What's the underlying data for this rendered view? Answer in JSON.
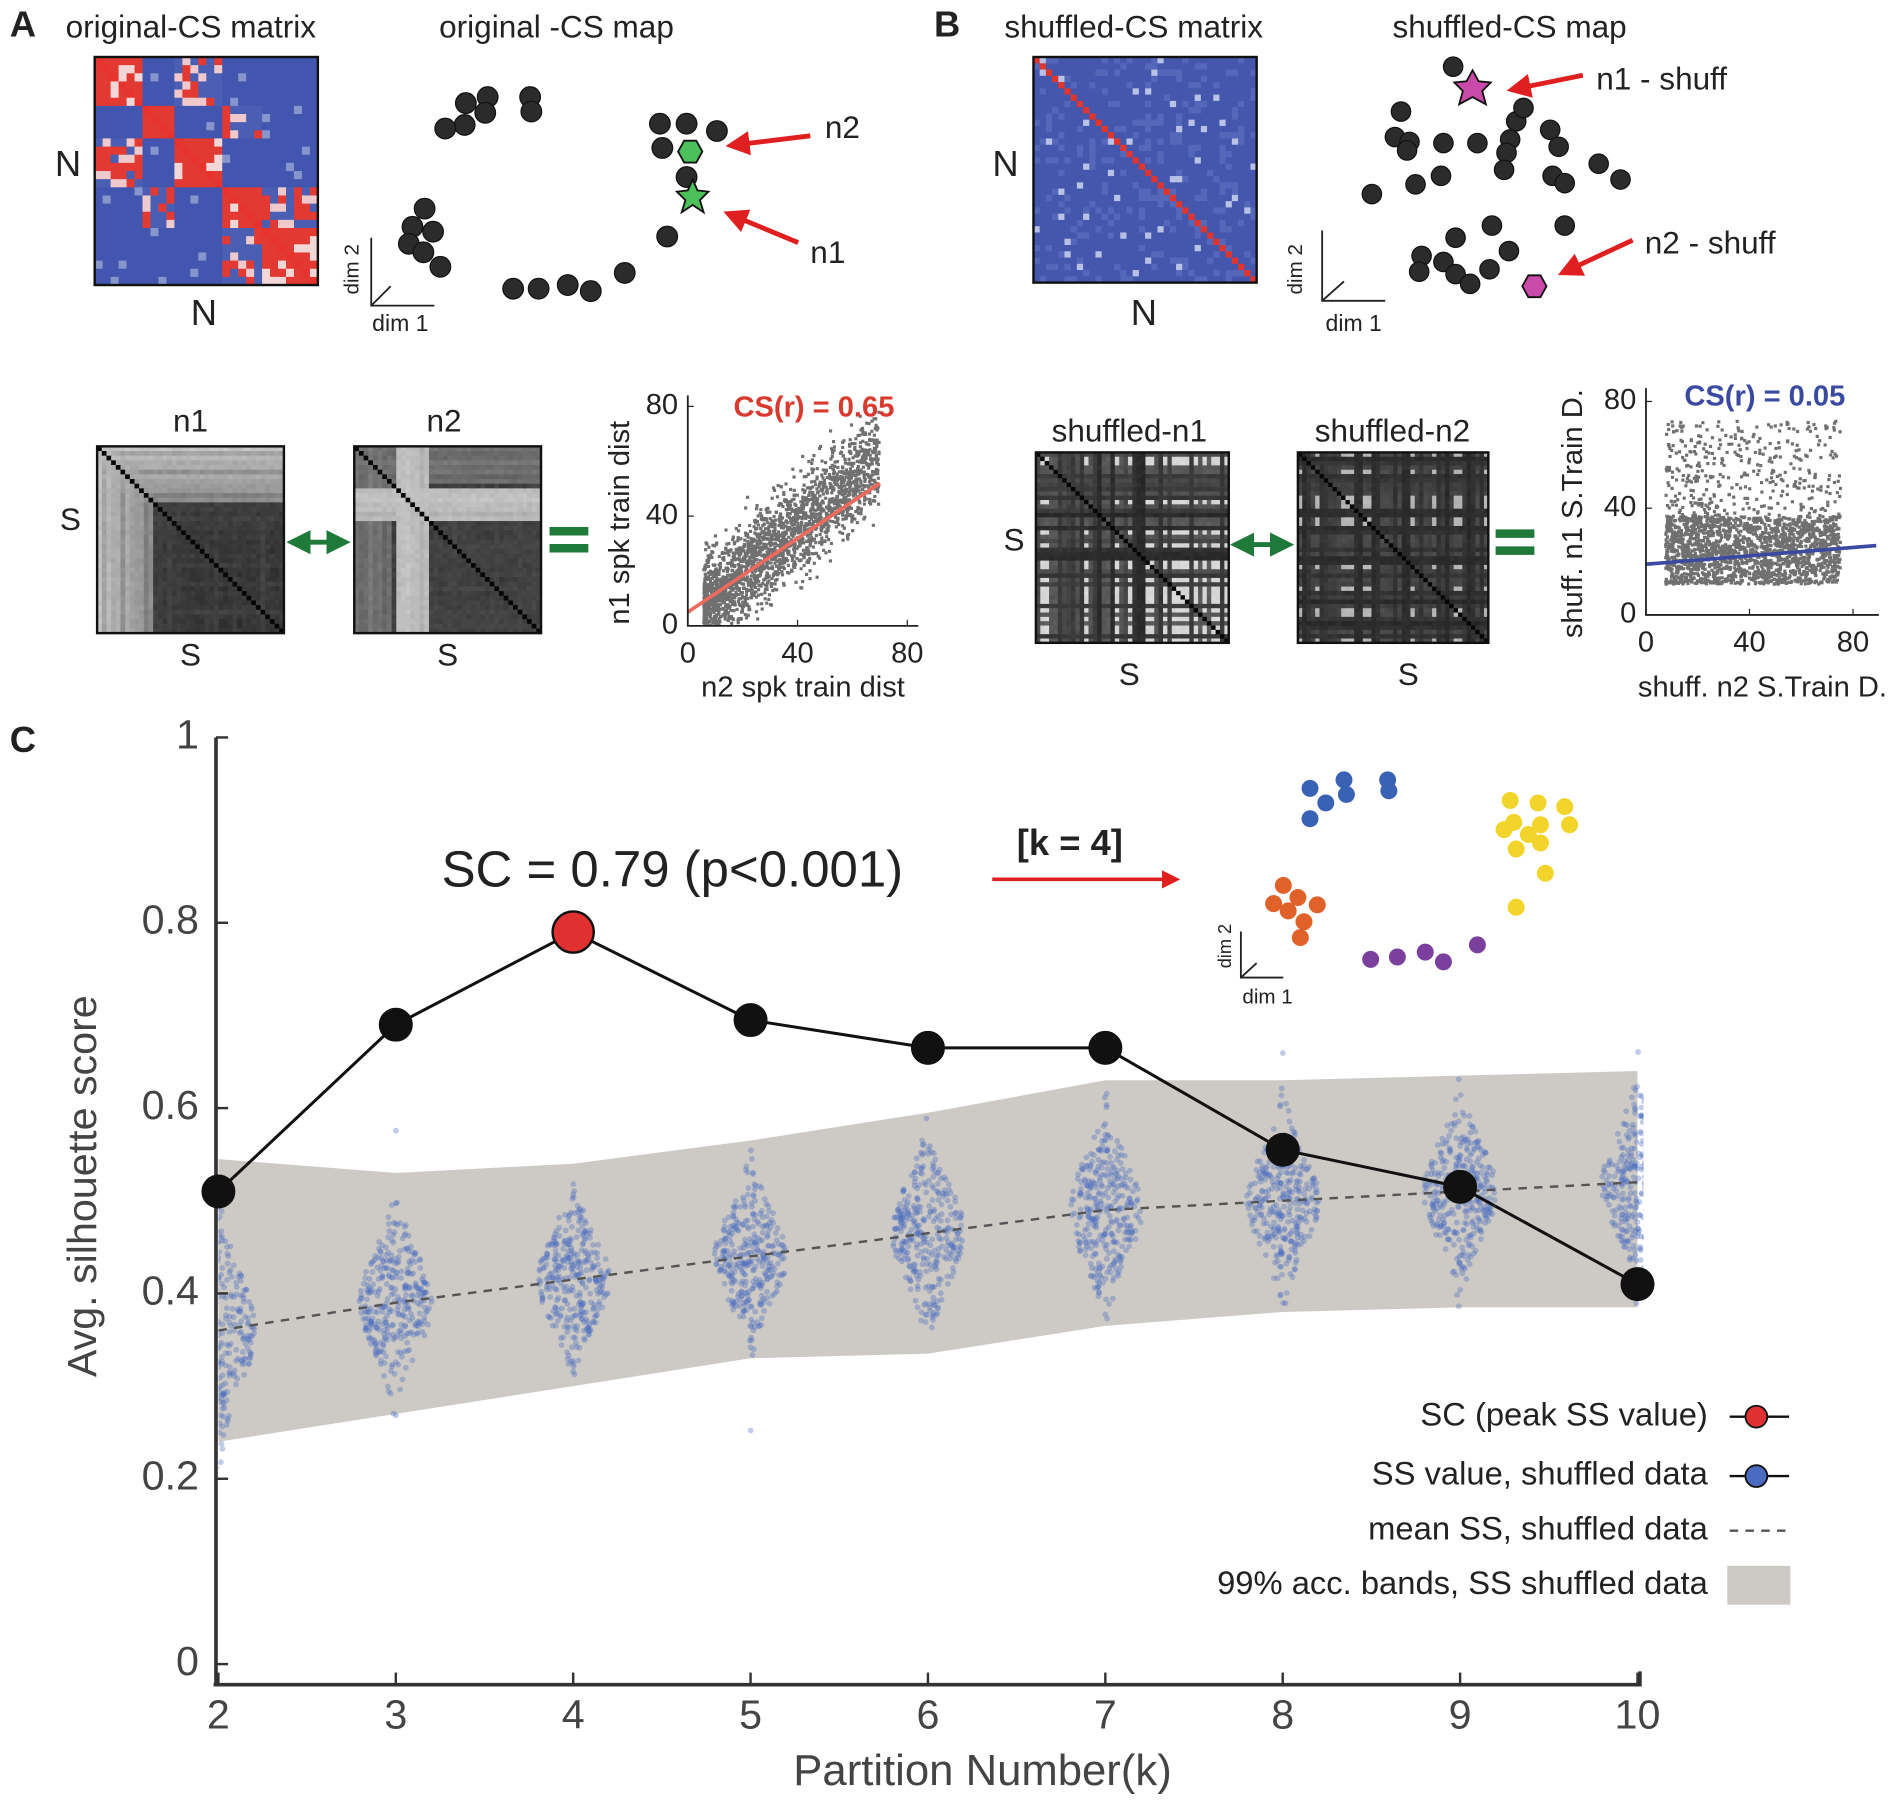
{
  "panels": {
    "A": {
      "label": "A",
      "matrix_title": "original-CS matrix",
      "map_title": "original -CS map",
      "matrix_y": "N",
      "matrix_x": "N",
      "dim_y": "dim 2",
      "dim_x": "dim 1",
      "arrow_labels": [
        "n2",
        "n1"
      ],
      "distance_titles": [
        "n1",
        "n2"
      ],
      "distance_axes": [
        "S",
        "S",
        "S"
      ]
    },
    "B": {
      "label": "B",
      "matrix_title": "shuffled-CS matrix",
      "map_title": "shuffled-CS map",
      "matrix_y": "N",
      "matrix_x": "N",
      "dim_y": "dim 2",
      "dim_x": "dim 1",
      "arrow_labels": [
        "n1 - shuff",
        "n2 - shuff"
      ],
      "distance_titles": [
        "shuffled-n1",
        "shuffled-n2"
      ],
      "distance_axes": [
        "S",
        "S",
        "S"
      ]
    },
    "C": {
      "label": "C",
      "dim_y": "dim 2",
      "dim_x": "dim 1"
    }
  },
  "chart_data": [
    {
      "type": "scatter",
      "title": "CS(r) = 0.65",
      "title_color": "#d93a2f",
      "xlabel": "n2 spk train dist",
      "ylabel": "n1 spk train dist",
      "xlim": [
        0,
        84
      ],
      "ylim": [
        0,
        84
      ],
      "xticks": [
        0,
        40,
        80
      ],
      "yticks": [
        0,
        40,
        80
      ],
      "point_color": "#707070",
      "fit_line": {
        "x": [
          0,
          70
        ],
        "y": [
          5,
          52
        ],
        "color": "#ef6a5e"
      }
    },
    {
      "type": "scatter",
      "title": "CS(r) = 0.05",
      "title_color": "#3a4aa0",
      "xlabel": "shuff. n2 S.Train D.",
      "ylabel": "shuff. n1 S.Train D.",
      "xlim": [
        0,
        90
      ],
      "ylim": [
        0,
        85
      ],
      "xticks": [
        0,
        40,
        80
      ],
      "yticks": [
        0,
        40,
        80
      ],
      "point_color": "#707070",
      "fit_line": {
        "x": [
          0,
          89
        ],
        "y": [
          19,
          26
        ],
        "color": "#3a4aa0"
      }
    },
    {
      "type": "line",
      "xlabel": "Partition Number(k)",
      "ylabel": "Avg. silhouette score",
      "x": [
        2,
        3,
        4,
        5,
        6,
        7,
        8,
        9,
        10
      ],
      "xlim": [
        2,
        10
      ],
      "xticks": [
        2,
        3,
        4,
        5,
        6,
        7,
        8,
        9,
        10
      ],
      "ylim": [
        0,
        1
      ],
      "yticks": [
        0,
        0.2,
        0.4,
        0.6,
        0.8,
        1
      ],
      "series": [
        {
          "name": "SC (peak SS value)",
          "color": "#e03030",
          "line_color": "#111111",
          "values": [
            0.51,
            0.69,
            0.79,
            0.695,
            0.665,
            0.665,
            0.555,
            0.515,
            0.41
          ]
        }
      ],
      "shuffled": {
        "name": "SS value, shuffled data",
        "color": "#4a6cc0",
        "mean_name": "mean SS, shuffled data",
        "mean": [
          0.36,
          0.39,
          0.415,
          0.44,
          0.465,
          0.49,
          0.5,
          0.51,
          0.52
        ],
        "band_name": "99% acc. bands, SS shuffled data",
        "band_color": "#cdc9c4",
        "band_lower": [
          0.24,
          0.27,
          0.3,
          0.33,
          0.335,
          0.365,
          0.38,
          0.385,
          0.385
        ],
        "band_upper": [
          0.545,
          0.53,
          0.54,
          0.565,
          0.595,
          0.63,
          0.63,
          0.635,
          0.64
        ]
      },
      "annotation": "SC = 0.79 (p<0.001)",
      "arrow_label": "[k = 4]"
    }
  ]
}
